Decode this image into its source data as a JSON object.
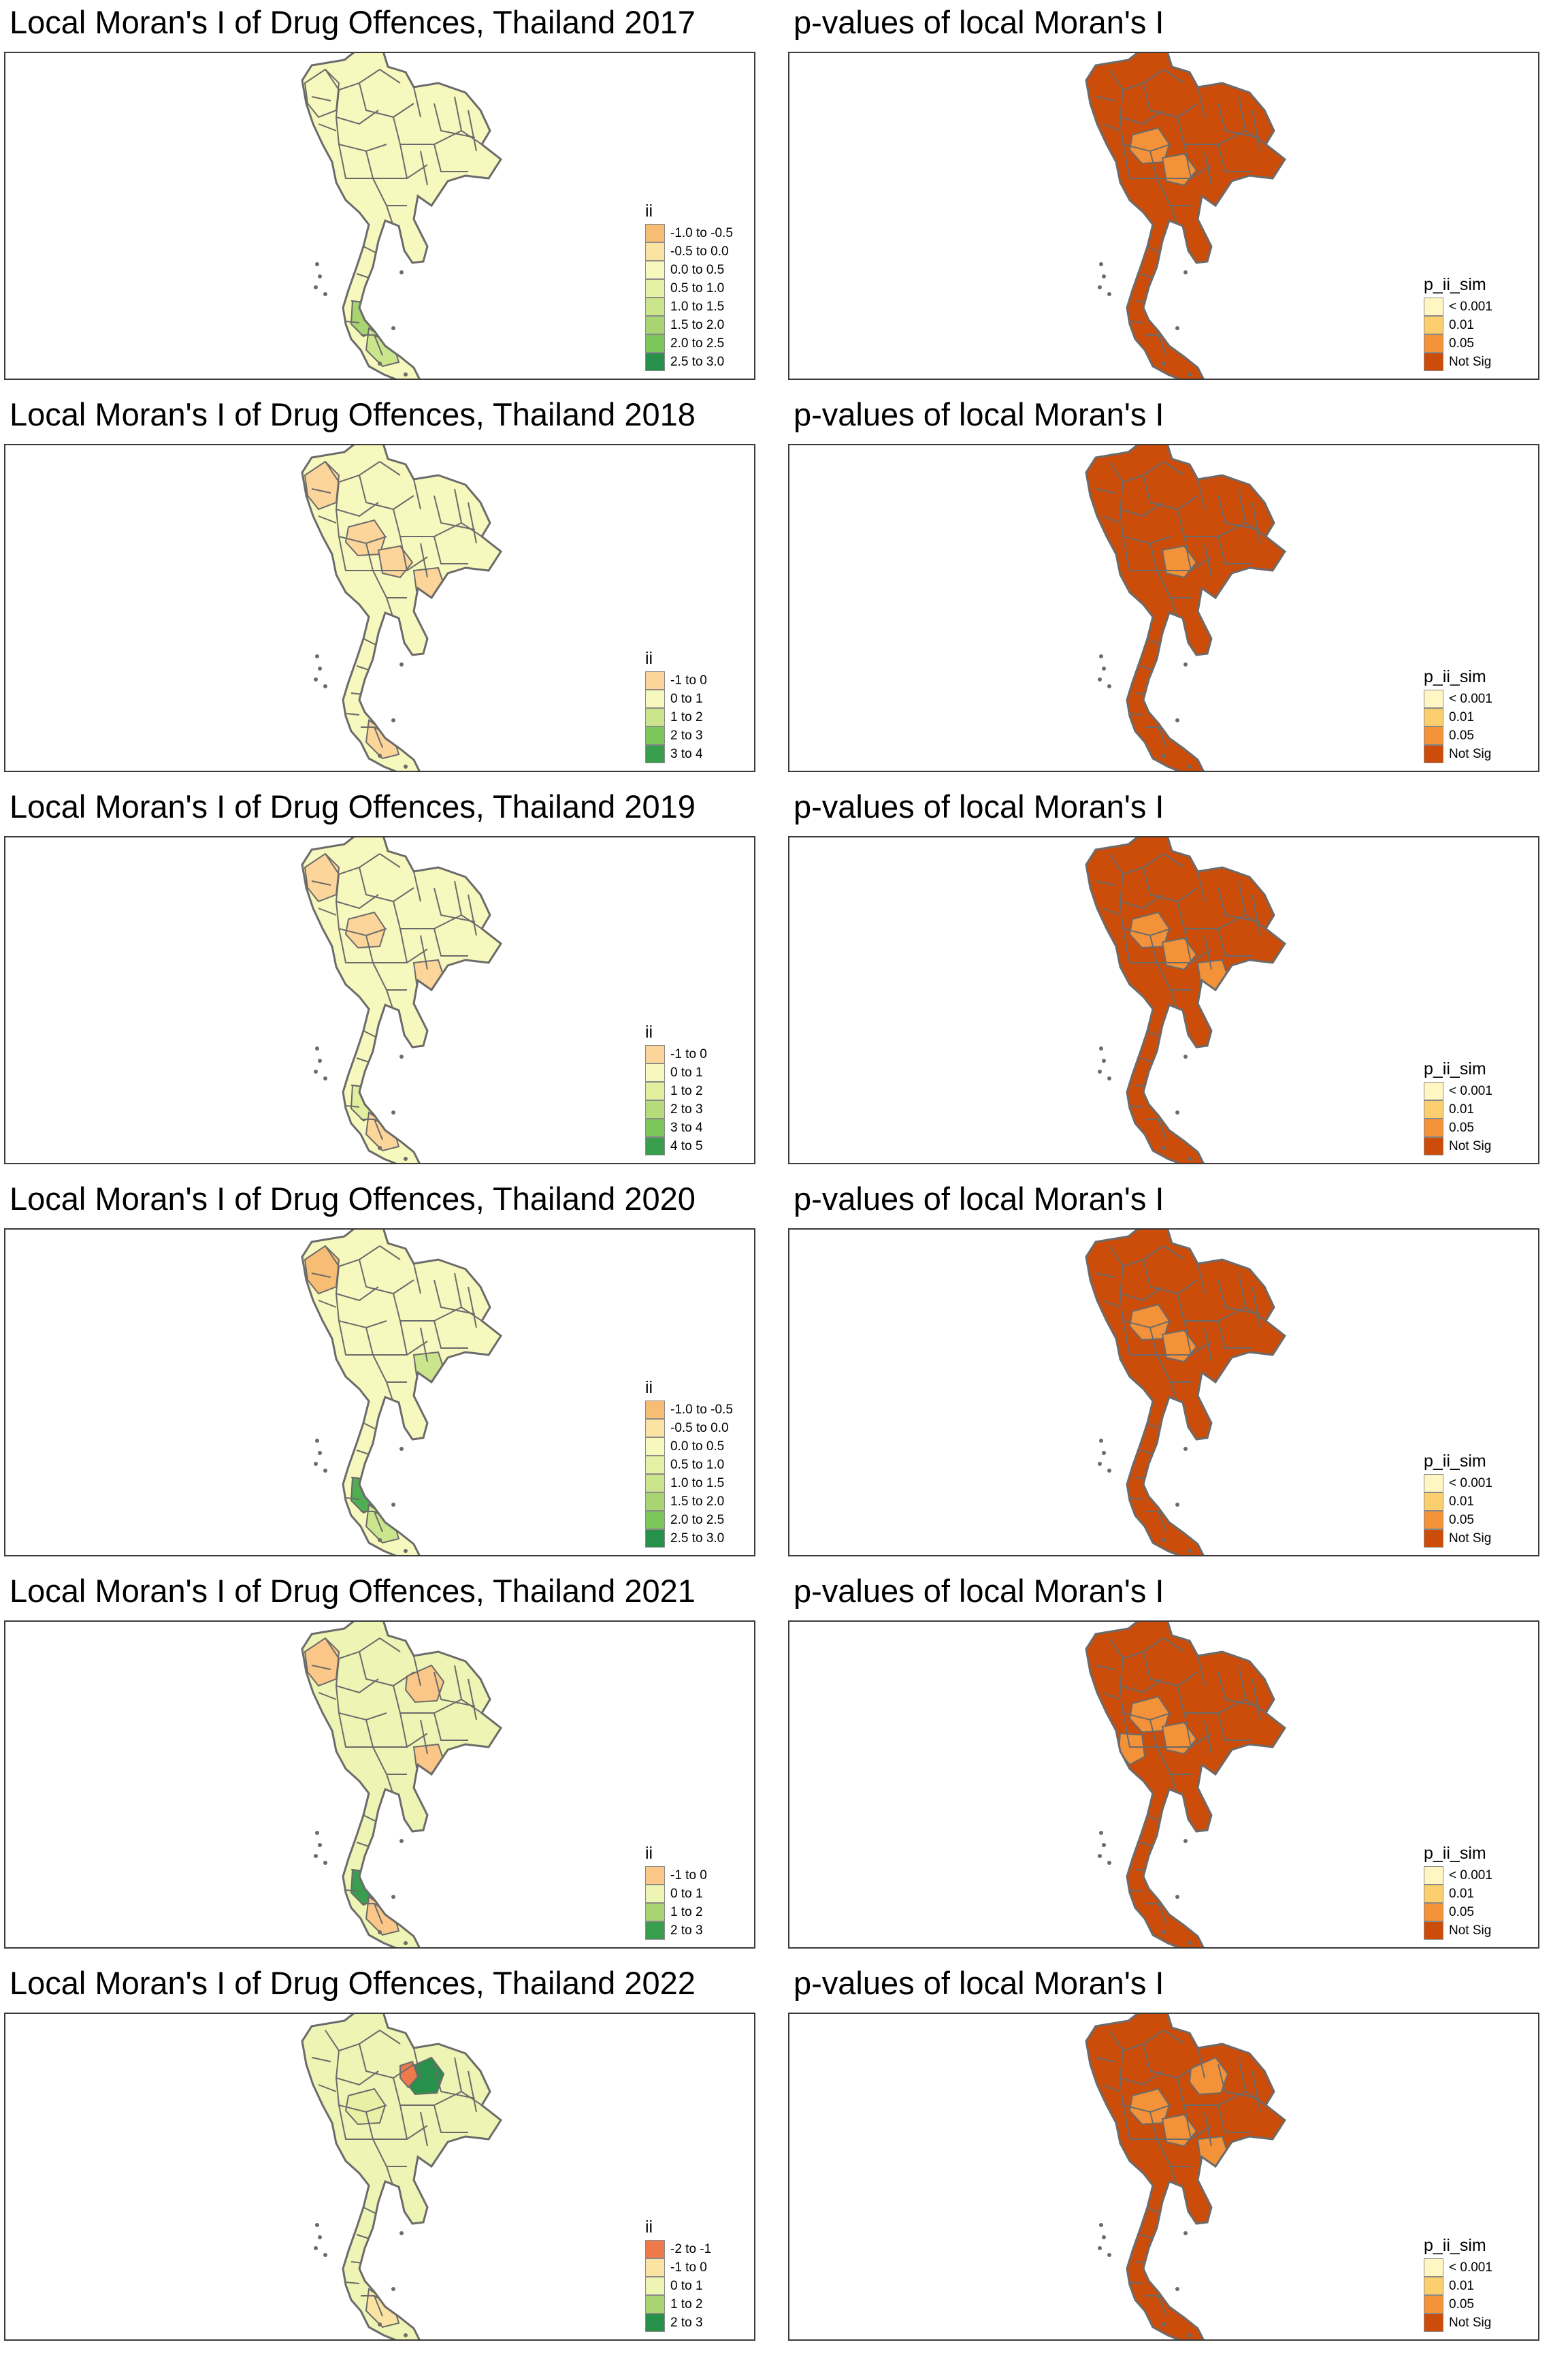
{
  "palettes": {
    "ii_neg2": "#ee7a4c",
    "ii_neg1": "#f7bd75",
    "ii_neg05": "#fbe3a3",
    "ii_0": "#f6f8bd",
    "ii_05": "#e7f1a6",
    "ii_1": "#cbe58c",
    "ii_15": "#a8d572",
    "ii_2": "#7dc65c",
    "ii_25": "#4fae52",
    "ii_3": "#27904a",
    "p_001": "#fff6c4",
    "p_01": "#fbcf6d",
    "p_05": "#f39238",
    "p_ns": "#cc4c0a",
    "border": "#6b6b6b"
  },
  "rows": [
    {
      "left": {
        "title": "Local Moran's I of Drug Offences, Thailand 2017",
        "legend_title": "ii",
        "classes": [
          {
            "label": "-1.0 to -0.5",
            "color": "#f7bd75"
          },
          {
            "label": "-0.5 to 0.0",
            "color": "#fbe3a3"
          },
          {
            "label": "0.0 to 0.5",
            "color": "#f6f8bd"
          },
          {
            "label": "0.5 to 1.0",
            "color": "#e7f1a6"
          },
          {
            "label": "1.0 to 1.5",
            "color": "#cbe58c"
          },
          {
            "label": "1.5 to 2.0",
            "color": "#a8d572"
          },
          {
            "label": "2.0 to 2.5",
            "color": "#7dc65c"
          },
          {
            "label": "2.5 to 3.0",
            "color": "#27904a"
          }
        ],
        "base_fill": "#f6f8bd",
        "highlights": [
          [
            "south1",
            "#a8d572"
          ],
          [
            "south2",
            "#cbe58c"
          ],
          [
            "north",
            "#f6f8bd"
          ]
        ]
      },
      "right": {
        "title": "p-values of local Moran's I",
        "legend_title": "p_ii_sim",
        "classes": [
          {
            "label": "< 0.001",
            "color": "#fff6c4"
          },
          {
            "label": "0.01",
            "color": "#fbcf6d"
          },
          {
            "label": "0.05",
            "color": "#f39238"
          },
          {
            "label": "Not Sig",
            "color": "#cc4c0a"
          }
        ],
        "highlights": [
          [
            "central1",
            "#f39238"
          ],
          [
            "central2",
            "#f39238"
          ]
        ]
      }
    },
    {
      "left": {
        "title": "Local Moran's I of Drug Offences, Thailand 2018",
        "legend_title": "ii",
        "classes": [
          {
            "label": "-1 to 0",
            "color": "#fbd59a"
          },
          {
            "label": "0 to 1",
            "color": "#f6f8bd"
          },
          {
            "label": "1 to 2",
            "color": "#cbe58c"
          },
          {
            "label": "2 to 3",
            "color": "#7dc65c"
          },
          {
            "label": "3 to 4",
            "color": "#3a9e4f"
          }
        ],
        "base_fill": "#f6f8bd",
        "highlights": [
          [
            "north",
            "#fbd59a"
          ],
          [
            "central1",
            "#fbd59a"
          ],
          [
            "central2",
            "#fbd59a"
          ],
          [
            "east",
            "#fbd59a"
          ],
          [
            "south2",
            "#fbd59a"
          ]
        ]
      },
      "right": {
        "title": "p-values of local Moran's I",
        "legend_title": "p_ii_sim",
        "classes": [
          {
            "label": "< 0.001",
            "color": "#fff6c4"
          },
          {
            "label": "0.01",
            "color": "#fbcf6d"
          },
          {
            "label": "0.05",
            "color": "#f39238"
          },
          {
            "label": "Not Sig",
            "color": "#cc4c0a"
          }
        ],
        "highlights": [
          [
            "central2",
            "#f39238"
          ]
        ]
      }
    },
    {
      "left": {
        "title": "Local Moran's I of Drug Offences, Thailand 2019",
        "legend_title": "ii",
        "classes": [
          {
            "label": "-1 to 0",
            "color": "#fbd59a"
          },
          {
            "label": "0 to 1",
            "color": "#f6f8bd"
          },
          {
            "label": "1 to 2",
            "color": "#e2ef9f"
          },
          {
            "label": "2 to 3",
            "color": "#b5db7a"
          },
          {
            "label": "3 to 4",
            "color": "#7dc65c"
          },
          {
            "label": "4 to 5",
            "color": "#3a9e4f"
          }
        ],
        "base_fill": "#f6f8bd",
        "highlights": [
          [
            "north",
            "#fbd59a"
          ],
          [
            "central1",
            "#fbd59a"
          ],
          [
            "east",
            "#fbd59a"
          ],
          [
            "south1",
            "#e2ef9f"
          ],
          [
            "south2",
            "#fbd59a"
          ]
        ]
      },
      "right": {
        "title": "p-values of local Moran's I",
        "legend_title": "p_ii_sim",
        "classes": [
          {
            "label": "< 0.001",
            "color": "#fff6c4"
          },
          {
            "label": "0.01",
            "color": "#fbcf6d"
          },
          {
            "label": "0.05",
            "color": "#f39238"
          },
          {
            "label": "Not Sig",
            "color": "#cc4c0a"
          }
        ],
        "highlights": [
          [
            "central1",
            "#f39238"
          ],
          [
            "central2",
            "#f39238"
          ],
          [
            "east",
            "#f39238"
          ]
        ]
      }
    },
    {
      "left": {
        "title": "Local Moran's I of Drug Offences, Thailand 2020",
        "legend_title": "ii",
        "classes": [
          {
            "label": "-1.0 to -0.5",
            "color": "#f7bd75"
          },
          {
            "label": "-0.5 to 0.0",
            "color": "#fbe3a3"
          },
          {
            "label": "0.0 to 0.5",
            "color": "#f6f8bd"
          },
          {
            "label": "0.5 to 1.0",
            "color": "#e7f1a6"
          },
          {
            "label": "1.0 to 1.5",
            "color": "#cbe58c"
          },
          {
            "label": "1.5 to 2.0",
            "color": "#a8d572"
          },
          {
            "label": "2.0 to 2.5",
            "color": "#7dc65c"
          },
          {
            "label": "2.5 to 3.0",
            "color": "#27904a"
          }
        ],
        "base_fill": "#f6f8bd",
        "highlights": [
          [
            "north",
            "#f7bd75"
          ],
          [
            "south1",
            "#4fae52"
          ],
          [
            "south2",
            "#cbe58c"
          ],
          [
            "east",
            "#cbe58c"
          ]
        ]
      },
      "right": {
        "title": "p-values of local Moran's I",
        "legend_title": "p_ii_sim",
        "classes": [
          {
            "label": "< 0.001",
            "color": "#fff6c4"
          },
          {
            "label": "0.01",
            "color": "#fbcf6d"
          },
          {
            "label": "0.05",
            "color": "#f39238"
          },
          {
            "label": "Not Sig",
            "color": "#cc4c0a"
          }
        ],
        "highlights": [
          [
            "central1",
            "#f39238"
          ],
          [
            "central2",
            "#f39238"
          ]
        ]
      }
    },
    {
      "left": {
        "title": "Local Moran's I of Drug Offences, Thailand 2021",
        "legend_title": "ii",
        "classes": [
          {
            "label": "-1 to 0",
            "color": "#fbc788"
          },
          {
            "label": "0 to 1",
            "color": "#eef4b3"
          },
          {
            "label": "1 to 2",
            "color": "#a8d572"
          },
          {
            "label": "2 to 3",
            "color": "#3a9e4f"
          }
        ],
        "base_fill": "#eef4b3",
        "highlights": [
          [
            "north",
            "#fbc788"
          ],
          [
            "northeast",
            "#fbc788"
          ],
          [
            "east",
            "#fbc788"
          ],
          [
            "south1",
            "#3a9e4f"
          ],
          [
            "south2",
            "#fbc788"
          ]
        ]
      },
      "right": {
        "title": "p-values of local Moran's I",
        "legend_title": "p_ii_sim",
        "classes": [
          {
            "label": "< 0.001",
            "color": "#fff6c4"
          },
          {
            "label": "0.01",
            "color": "#fbcf6d"
          },
          {
            "label": "0.05",
            "color": "#f39238"
          },
          {
            "label": "Not Sig",
            "color": "#cc4c0a"
          }
        ],
        "highlights": [
          [
            "central1",
            "#f39238"
          ],
          [
            "central2",
            "#f39238"
          ],
          [
            "west",
            "#f39238"
          ]
        ]
      }
    },
    {
      "left": {
        "title": "Local Moran's I of Drug Offences, Thailand 2022",
        "legend_title": "ii",
        "classes": [
          {
            "label": "-2 to -1",
            "color": "#ee7a4c"
          },
          {
            "label": "-1 to 0",
            "color": "#fbe3a3"
          },
          {
            "label": "0 to 1",
            "color": "#eef4b3"
          },
          {
            "label": "1 to 2",
            "color": "#a8d572"
          },
          {
            "label": "2 to 3",
            "color": "#27904a"
          }
        ],
        "base_fill": "#eef4b3",
        "highlights": [
          [
            "northeast",
            "#27904a"
          ],
          [
            "northeast2",
            "#ee7a4c"
          ],
          [
            "central1",
            "#e7f1a6"
          ],
          [
            "south2",
            "#fbe3a3"
          ]
        ]
      },
      "right": {
        "title": "p-values of local Moran's I",
        "legend_title": "p_ii_sim",
        "classes": [
          {
            "label": "< 0.001",
            "color": "#fff6c4"
          },
          {
            "label": "0.01",
            "color": "#fbcf6d"
          },
          {
            "label": "0.05",
            "color": "#f39238"
          },
          {
            "label": "Not Sig",
            "color": "#cc4c0a"
          }
        ],
        "highlights": [
          [
            "central1",
            "#f39238"
          ],
          [
            "central2",
            "#f39238"
          ],
          [
            "northeast",
            "#f39238"
          ],
          [
            "east",
            "#f39238"
          ]
        ]
      }
    }
  ]
}
